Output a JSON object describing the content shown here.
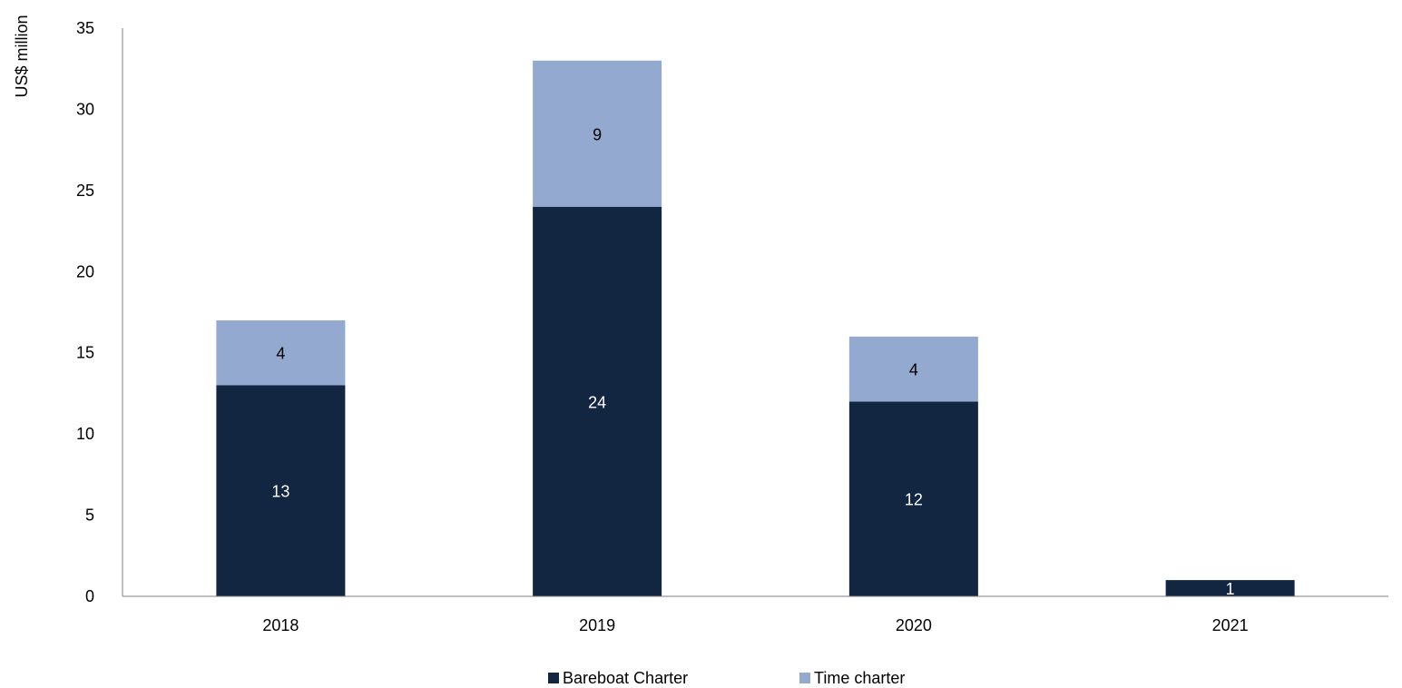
{
  "chart_data": {
    "type": "bar",
    "stacked": true,
    "categories": [
      "2018",
      "2019",
      "2020",
      "2021"
    ],
    "series": [
      {
        "name": "Bareboat Charter",
        "values": [
          13,
          24,
          12,
          1
        ],
        "color": "#132641"
      },
      {
        "name": "Time charter",
        "values": [
          4,
          9,
          4,
          0
        ],
        "color": "#94A9CF"
      }
    ],
    "data_labels": [
      [
        "13",
        "24",
        "12",
        "1"
      ],
      [
        "4",
        "9",
        "4",
        ""
      ]
    ],
    "label_colors": [
      "#ffffff",
      "#000000"
    ],
    "title": "",
    "xlabel": "",
    "ylabel": "US$ million",
    "ylim": [
      0,
      35
    ],
    "yticks": [
      0,
      5,
      10,
      15,
      20,
      25,
      30,
      35
    ],
    "grid": false,
    "legend_position": "bottom"
  }
}
